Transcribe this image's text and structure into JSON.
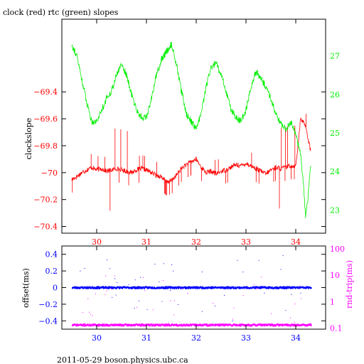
{
  "title": "clock (red) rtc (green) slopes",
  "footer": "2011-05-29  boson.physics.ubc.ca",
  "colors": {
    "clock": "#ff0000",
    "rtc": "#00ee00",
    "offset": "#0000ff",
    "round_trip": "#ff00ff",
    "frame": "#000000",
    "background": "#ffffff"
  },
  "chart_data": [
    {
      "type": "line",
      "title": "clock (red) rtc (green) slopes",
      "xlabel": "",
      "ylabel": "clockslope",
      "y2label": "",
      "xlim": [
        29.3,
        34.6
      ],
      "ylim": [
        -70.45,
        -68.86
      ],
      "y2lim": [
        22.4,
        27.95
      ],
      "grid": false,
      "x_ticks": [
        30,
        31,
        32,
        33,
        34
      ],
      "y_ticks": [
        -69.4,
        -69.6,
        -69.8,
        -70,
        -70.2,
        -70.4
      ],
      "y2_ticks": [
        27,
        26,
        25,
        24,
        23
      ],
      "y2_tick_labels": [
        "27",
        "26",
        "25",
        "24",
        "23"
      ],
      "series": [
        {
          "name": "clock",
          "axis": "left",
          "x": [
            29.5,
            29.6,
            29.7,
            29.8,
            29.9,
            30.0,
            30.1,
            30.2,
            30.3,
            30.4,
            30.5,
            30.6,
            30.7,
            30.8,
            30.9,
            31.0,
            31.1,
            31.2,
            31.3,
            31.4,
            31.5,
            31.6,
            31.7,
            31.8,
            31.9,
            32.0,
            32.1,
            32.2,
            32.3,
            32.4,
            32.5,
            32.6,
            32.7,
            32.8,
            32.9,
            33.0,
            33.1,
            33.2,
            33.3,
            33.4,
            33.5,
            33.6,
            33.7,
            33.8,
            33.9,
            34.0,
            34.1,
            34.2,
            34.25,
            34.3
          ],
          "y": [
            -70.05,
            -70.03,
            -70.0,
            -69.98,
            -69.96,
            -69.98,
            -69.97,
            -69.99,
            -69.98,
            -69.97,
            -69.98,
            -69.99,
            -70.0,
            -69.98,
            -69.97,
            -69.98,
            -70.0,
            -70.02,
            -70.03,
            -70.07,
            -70.06,
            -70.02,
            -69.97,
            -69.94,
            -69.92,
            -69.9,
            -69.96,
            -70.0,
            -69.99,
            -70.01,
            -69.99,
            -69.98,
            -69.96,
            -69.94,
            -69.95,
            -69.93,
            -69.95,
            -69.97,
            -69.99,
            -70.01,
            -69.98,
            -69.96,
            -69.97,
            -69.96,
            -69.95,
            -69.95,
            -69.6,
            -69.65,
            -69.75,
            -69.84
          ]
        },
        {
          "name": "rtc",
          "axis": "right",
          "x": [
            29.5,
            29.6,
            29.7,
            29.8,
            29.9,
            30.0,
            30.1,
            30.2,
            30.3,
            30.4,
            30.5,
            30.6,
            30.7,
            30.8,
            30.9,
            31.0,
            31.1,
            31.2,
            31.3,
            31.4,
            31.5,
            31.6,
            31.7,
            31.8,
            31.9,
            32.0,
            32.1,
            32.2,
            32.3,
            32.4,
            32.5,
            32.6,
            32.7,
            32.8,
            32.9,
            33.0,
            33.1,
            33.2,
            33.3,
            33.4,
            33.5,
            33.6,
            33.7,
            33.8,
            33.9,
            34.0,
            34.1,
            34.15,
            34.2,
            34.25,
            34.3
          ],
          "y": [
            27.3,
            27.0,
            26.4,
            25.8,
            25.3,
            25.3,
            25.6,
            25.9,
            26.1,
            26.5,
            26.8,
            26.5,
            26.0,
            25.6,
            25.4,
            25.4,
            25.9,
            26.5,
            26.9,
            27.1,
            27.3,
            26.8,
            26.1,
            25.5,
            25.3,
            25.1,
            25.5,
            26.2,
            26.7,
            26.8,
            26.5,
            26.1,
            25.6,
            25.4,
            25.3,
            25.6,
            26.2,
            26.6,
            26.4,
            26.2,
            25.9,
            25.5,
            25.2,
            25.1,
            25.3,
            25.0,
            24.4,
            23.7,
            22.8,
            23.4,
            24.2
          ]
        }
      ]
    },
    {
      "type": "scatter",
      "title": "",
      "xlabel": "",
      "ylabel": "offset(ms)",
      "y2label": "rnd-trip(ms)",
      "xlim": [
        29.3,
        34.6
      ],
      "ylim": [
        -0.5,
        0.5
      ],
      "y2_scale": "log",
      "y2lim": [
        0.09,
        130
      ],
      "grid": false,
      "x_ticks": [
        30,
        31,
        32,
        33,
        34
      ],
      "y_ticks": [
        0.4,
        0.2,
        0,
        -0.2,
        -0.4
      ],
      "y_tick_labels": [
        "0.4",
        "0.2",
        "0",
        "-0.2",
        "-0.4"
      ],
      "y2_ticks": [
        100,
        10,
        1,
        0.1
      ],
      "y2_tick_labels": [
        "100",
        "10",
        "1",
        "0.1"
      ],
      "series": [
        {
          "name": "offset",
          "axis": "left",
          "x": [
            29.5,
            30.0,
            30.5,
            31.0,
            31.5,
            32.0,
            32.5,
            33.0,
            33.5,
            34.0,
            34.3
          ],
          "y": [
            0.0,
            0.0,
            0.0,
            0.0,
            0.0,
            0.0,
            0.0,
            0.0,
            0.0,
            0.0,
            0.0
          ]
        },
        {
          "name": "round_trip",
          "axis": "right",
          "x": [
            29.5,
            30.0,
            30.5,
            31.0,
            31.5,
            32.0,
            32.5,
            33.0,
            33.5,
            34.0,
            34.3
          ],
          "y": [
            0.13,
            0.13,
            0.13,
            0.13,
            0.13,
            0.13,
            0.13,
            0.13,
            0.13,
            0.13,
            0.13
          ]
        }
      ]
    }
  ]
}
